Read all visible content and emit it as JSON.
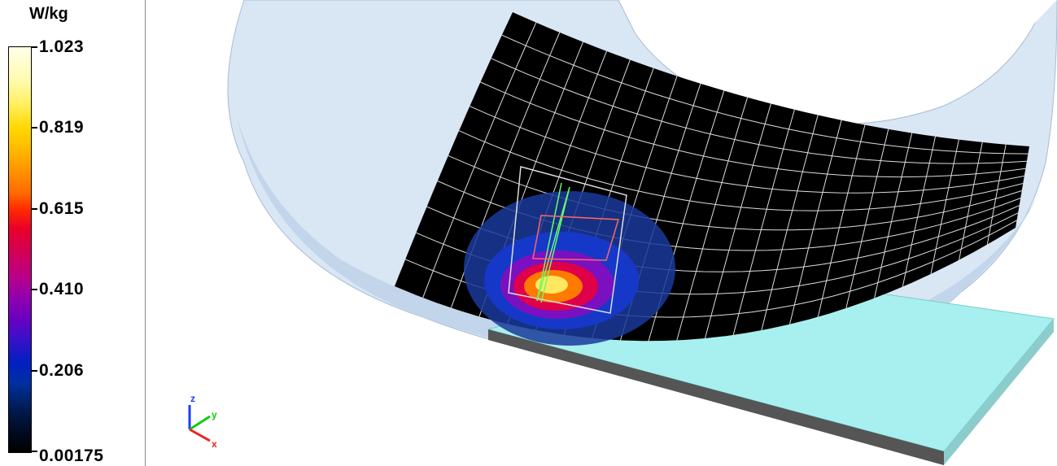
{
  "colorbar": {
    "unit": "W/kg",
    "ticks": [
      "1.023",
      "0.819",
      "0.615",
      "0.410",
      "0.206",
      "0.00175"
    ]
  },
  "triad": {
    "labels": [
      "z",
      "y",
      "x"
    ]
  }
}
